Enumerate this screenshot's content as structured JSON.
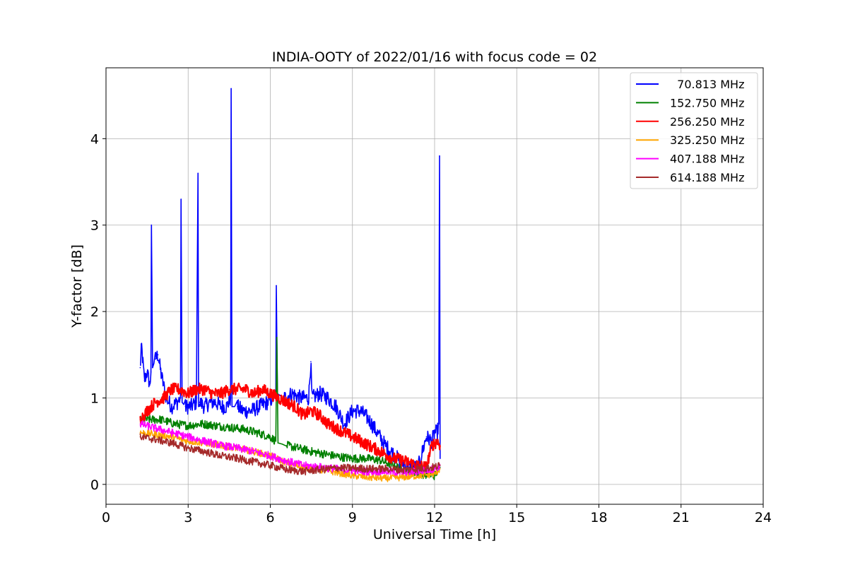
{
  "chart_data": {
    "type": "line",
    "title": "INDIA-OOTY of 2022/01/16 with focus code = 02",
    "xlabel": "Universal Time [h]",
    "ylabel": "Y-factor [dB]",
    "xlim": [
      0,
      24
    ],
    "ylim": [
      -0.23,
      4.82
    ],
    "xticks": [
      0,
      3,
      6,
      9,
      12,
      15,
      18,
      21,
      24
    ],
    "yticks": [
      0,
      1,
      2,
      3,
      4
    ],
    "grid": true,
    "legend_position": "top-right",
    "series": [
      {
        "name": "  70.813 MHz",
        "color": "#0000ff",
        "x": [
          1.25,
          1.3,
          1.4,
          1.5,
          1.6,
          1.64,
          1.66,
          1.7,
          1.8,
          1.9,
          2.0,
          2.2,
          2.4,
          2.6,
          2.72,
          2.74,
          2.78,
          2.9,
          3.1,
          3.3,
          3.36,
          3.38,
          3.42,
          3.6,
          3.8,
          4.0,
          4.2,
          4.4,
          4.55,
          4.57,
          4.6,
          4.8,
          5.0,
          5.3,
          5.6,
          5.9,
          6.1,
          6.2,
          6.22,
          6.26,
          6.5,
          6.8,
          7.1,
          7.4,
          7.48,
          7.52,
          7.8,
          8.1,
          8.4,
          8.7,
          9.0,
          9.3,
          9.6,
          9.9,
          10.2,
          10.5,
          10.8,
          11.1,
          11.4,
          11.7,
          11.9,
          12.0,
          12.1,
          12.15,
          12.18,
          12.2
        ],
        "y": [
          1.35,
          1.6,
          1.2,
          1.3,
          1.15,
          1.3,
          3.0,
          1.35,
          1.45,
          1.5,
          1.3,
          1.0,
          0.9,
          0.95,
          1.0,
          3.3,
          0.95,
          0.9,
          0.9,
          0.95,
          3.6,
          0.9,
          0.95,
          0.9,
          0.95,
          0.95,
          0.9,
          0.9,
          1.0,
          4.58,
          0.9,
          0.9,
          0.85,
          0.85,
          0.9,
          0.95,
          1.0,
          1.0,
          2.3,
          1.05,
          1.0,
          1.05,
          1.0,
          1.0,
          1.42,
          1.0,
          1.05,
          1.0,
          0.9,
          0.7,
          0.85,
          0.85,
          0.75,
          0.6,
          0.45,
          0.35,
          0.25,
          0.2,
          0.2,
          0.55,
          0.5,
          0.6,
          0.6,
          0.7,
          3.8,
          0.3
        ]
      },
      {
        "name": "152.750 MHz",
        "color": "#008000",
        "x": [
          1.25,
          1.6,
          2.0,
          2.5,
          3.0,
          3.5,
          4.0,
          4.5,
          5.0,
          5.5,
          6.0,
          6.2,
          6.24,
          6.28,
          6.6,
          7.0,
          7.5,
          8.0,
          8.5,
          9.0,
          9.5,
          10.0,
          10.5,
          11.0,
          11.5,
          12.0,
          12.2
        ],
        "y": [
          0.75,
          0.75,
          0.75,
          0.7,
          0.68,
          0.7,
          0.68,
          0.66,
          0.64,
          0.6,
          0.55,
          0.5,
          1.7,
          0.48,
          0.45,
          0.42,
          0.38,
          0.35,
          0.32,
          0.3,
          0.3,
          0.28,
          0.22,
          0.15,
          0.12,
          0.1,
          0.2
        ]
      },
      {
        "name": "256.250 MHz",
        "color": "#ff0000",
        "x": [
          1.25,
          1.5,
          1.8,
          2.1,
          2.4,
          2.7,
          3.0,
          3.3,
          3.6,
          3.9,
          4.2,
          4.5,
          4.8,
          5.1,
          5.4,
          5.7,
          6.0,
          6.3,
          6.6,
          6.9,
          7.2,
          7.5,
          7.8,
          8.1,
          8.4,
          8.7,
          9.0,
          9.3,
          9.6,
          9.9,
          10.2,
          10.5,
          10.8,
          11.1,
          11.4,
          11.7,
          11.9,
          12.1,
          12.2
        ],
        "y": [
          0.75,
          0.85,
          0.95,
          1.0,
          1.1,
          1.1,
          1.05,
          1.1,
          1.1,
          1.05,
          1.05,
          1.1,
          1.1,
          1.1,
          1.05,
          1.1,
          1.05,
          1.0,
          0.95,
          0.9,
          0.8,
          0.85,
          0.8,
          0.7,
          0.65,
          0.6,
          0.55,
          0.5,
          0.45,
          0.4,
          0.35,
          0.3,
          0.28,
          0.25,
          0.22,
          0.2,
          0.45,
          0.5,
          0.45
        ]
      },
      {
        "name": "325.250 MHz",
        "color": "#ffa500",
        "x": [
          1.25,
          1.8,
          2.4,
          3.0,
          3.6,
          4.2,
          4.8,
          5.4,
          6.0,
          6.6,
          7.2,
          7.8,
          8.4,
          9.0,
          9.6,
          10.2,
          10.8,
          11.4,
          12.0,
          12.2
        ],
        "y": [
          0.6,
          0.58,
          0.55,
          0.5,
          0.48,
          0.45,
          0.42,
          0.38,
          0.33,
          0.25,
          0.2,
          0.17,
          0.14,
          0.1,
          0.08,
          0.07,
          0.08,
          0.1,
          0.12,
          0.18
        ]
      },
      {
        "name": "407.188 MHz",
        "color": "#ff00ff",
        "x": [
          1.25,
          1.8,
          2.4,
          3.0,
          3.6,
          4.2,
          4.8,
          5.4,
          6.0,
          6.6,
          7.2,
          7.8,
          8.4,
          9.0,
          9.6,
          10.2,
          10.8,
          11.4,
          12.0,
          12.2
        ],
        "y": [
          0.7,
          0.65,
          0.6,
          0.55,
          0.5,
          0.45,
          0.42,
          0.38,
          0.33,
          0.27,
          0.22,
          0.2,
          0.18,
          0.16,
          0.15,
          0.15,
          0.14,
          0.15,
          0.18,
          0.22
        ]
      },
      {
        "name": "614.188 MHz",
        "color": "#a52a2a",
        "x": [
          1.25,
          1.8,
          2.4,
          3.0,
          3.6,
          4.2,
          4.8,
          5.4,
          6.0,
          6.6,
          7.2,
          7.8,
          8.4,
          9.0,
          9.6,
          10.2,
          10.8,
          11.4,
          12.0,
          12.2
        ],
        "y": [
          0.55,
          0.52,
          0.48,
          0.42,
          0.38,
          0.33,
          0.3,
          0.26,
          0.22,
          0.17,
          0.15,
          0.17,
          0.19,
          0.19,
          0.18,
          0.18,
          0.17,
          0.18,
          0.2,
          0.22
        ]
      }
    ]
  }
}
